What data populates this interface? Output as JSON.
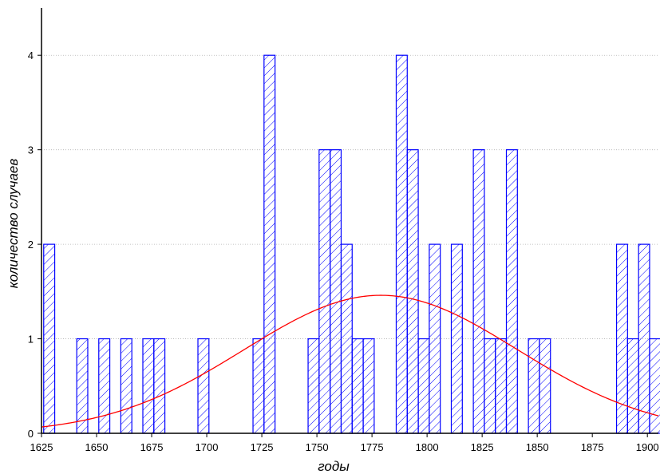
{
  "chart_data": {
    "type": "bar",
    "title": "",
    "xlabel": "годы",
    "ylabel": "количество случаев",
    "xlim": [
      1625,
      1905
    ],
    "ylim": [
      0,
      4.5
    ],
    "x_ticks": [
      1625,
      1650,
      1675,
      1700,
      1725,
      1750,
      1775,
      1800,
      1825,
      1850,
      1875,
      1900
    ],
    "y_ticks": [
      0,
      1,
      2,
      3,
      4
    ],
    "grid": "horizontal-dotted",
    "bin_width": 5,
    "bars": [
      {
        "start": 1626,
        "count": 2
      },
      {
        "start": 1641,
        "count": 1
      },
      {
        "start": 1651,
        "count": 1
      },
      {
        "start": 1661,
        "count": 1
      },
      {
        "start": 1671,
        "count": 1
      },
      {
        "start": 1676,
        "count": 1
      },
      {
        "start": 1696,
        "count": 1
      },
      {
        "start": 1721,
        "count": 1
      },
      {
        "start": 1726,
        "count": 4
      },
      {
        "start": 1746,
        "count": 1
      },
      {
        "start": 1751,
        "count": 3
      },
      {
        "start": 1756,
        "count": 3
      },
      {
        "start": 1761,
        "count": 2
      },
      {
        "start": 1766,
        "count": 1
      },
      {
        "start": 1771,
        "count": 1
      },
      {
        "start": 1786,
        "count": 4
      },
      {
        "start": 1791,
        "count": 3
      },
      {
        "start": 1796,
        "count": 1
      },
      {
        "start": 1801,
        "count": 2
      },
      {
        "start": 1811,
        "count": 2
      },
      {
        "start": 1821,
        "count": 3
      },
      {
        "start": 1826,
        "count": 1
      },
      {
        "start": 1831,
        "count": 1
      },
      {
        "start": 1836,
        "count": 3
      },
      {
        "start": 1846,
        "count": 1
      },
      {
        "start": 1851,
        "count": 1
      },
      {
        "start": 1886,
        "count": 2
      },
      {
        "start": 1891,
        "count": 1
      },
      {
        "start": 1896,
        "count": 2
      },
      {
        "start": 1901,
        "count": 1
      }
    ],
    "normal_curve": {
      "mean": 1779,
      "sd": 62,
      "peak": 1.46,
      "color": "#ff0000"
    },
    "bar_color": "#0000ff",
    "hatch": "diagonal"
  }
}
